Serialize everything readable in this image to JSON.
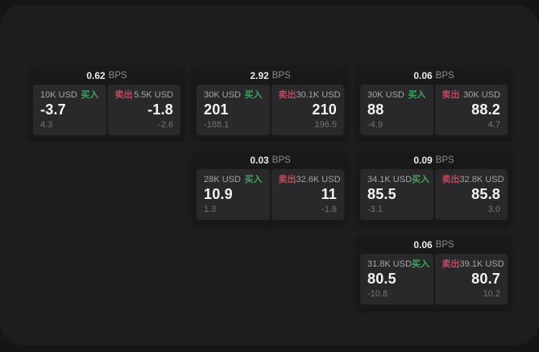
{
  "labels": {
    "bps_suffix": "BPS",
    "buy": "买入",
    "sell": "卖出"
  },
  "colors": {
    "buy_green": "#3fa45f",
    "sell_red": "#c04a5e",
    "page_bg": "#1d1d1f",
    "card_bg": "#19191b",
    "panel_bg": "#29292b"
  },
  "cards": [
    {
      "bps": "0.62",
      "row": 1,
      "col": 1,
      "buy": {
        "size": "10K USD",
        "price": "-3.7",
        "delta": "4.3"
      },
      "sell": {
        "size": "5.5K USD",
        "price": "-1.8",
        "delta": "-2.6"
      }
    },
    {
      "bps": "2.92",
      "row": 1,
      "col": 2,
      "buy": {
        "size": "30K USD",
        "price": "201",
        "delta": "-188.1"
      },
      "sell": {
        "size": "30.1K USD",
        "price": "210",
        "delta": "196.5"
      }
    },
    {
      "bps": "0.06",
      "row": 1,
      "col": 3,
      "buy": {
        "size": "30K USD",
        "price": "88",
        "delta": "-4.9"
      },
      "sell": {
        "size": "30K USD",
        "price": "88.2",
        "delta": "4.7"
      }
    },
    {
      "bps": "0.03",
      "row": 2,
      "col": 2,
      "buy": {
        "size": "28K USD",
        "price": "10.9",
        "delta": "1.3"
      },
      "sell": {
        "size": "32.6K USD",
        "price": "11",
        "delta": "-1.8"
      }
    },
    {
      "bps": "0.09",
      "row": 2,
      "col": 3,
      "buy": {
        "size": "34.1K USD",
        "price": "85.5",
        "delta": "-3.1"
      },
      "sell": {
        "size": "32.8K USD",
        "price": "85.8",
        "delta": "3.0"
      }
    },
    {
      "bps": "0.06",
      "row": 3,
      "col": 3,
      "buy": {
        "size": "31.8K USD",
        "price": "80.5",
        "delta": "-10.8"
      },
      "sell": {
        "size": "39.1K USD",
        "price": "80.7",
        "delta": "10.2"
      }
    }
  ]
}
